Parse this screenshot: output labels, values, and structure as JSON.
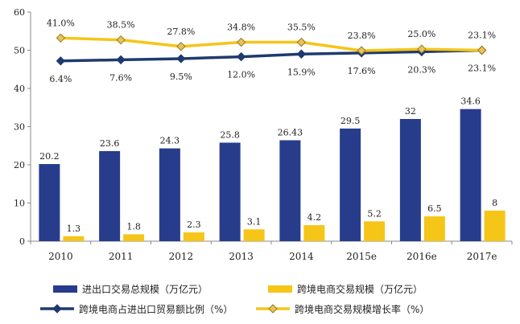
{
  "chart_data": {
    "type": "bar",
    "categories": [
      "2010",
      "2011",
      "2012",
      "2013",
      "2014",
      "2015e",
      "2016e",
      "2017e"
    ],
    "ylim": [
      0,
      60
    ],
    "yticks": [
      0,
      10,
      20,
      30,
      40,
      50,
      60
    ],
    "grid": false,
    "legend_position": "bottom",
    "series": [
      {
        "name": "进出口交易总规模（万亿元）",
        "type": "bar",
        "color": "#283C8C",
        "values": [
          20.2,
          23.6,
          24.3,
          25.8,
          26.43,
          29.5,
          32,
          34.6
        ],
        "labels": [
          "20.2",
          "23.6",
          "24.3",
          "25.8",
          "26.43",
          "29.5",
          "32",
          "34.6"
        ]
      },
      {
        "name": "跨境电商交易规模（万亿元）",
        "type": "bar",
        "color": "#F5C518",
        "values": [
          1.3,
          1.8,
          2.3,
          3.1,
          4.2,
          5.2,
          6.5,
          8
        ],
        "labels": [
          "1.3",
          "1.8",
          "2.3",
          "3.1",
          "4.2",
          "5.2",
          "6.5",
          "8"
        ]
      },
      {
        "name": "跨境电商占进出口贸易额比例（%）",
        "type": "line",
        "color": "#1F3A6E",
        "marker": "diamond",
        "values": [
          47.2,
          47.5,
          47.8,
          48.3,
          49.0,
          49.3,
          49.6,
          50.0
        ],
        "labels": [
          "6.4%",
          "7.6%",
          "9.5%",
          "12.0%",
          "15.9%",
          "17.6%",
          "20.3%",
          "23.1%"
        ]
      },
      {
        "name": "跨境电商交易规模增长率（%）",
        "type": "line",
        "color": "#F5C518",
        "marker": "diamond",
        "values": [
          53.2,
          52.7,
          51.0,
          52.1,
          52.1,
          49.9,
          50.3,
          50.0
        ],
        "labels": [
          "41.0%",
          "38.5%",
          "27.8%",
          "34.8%",
          "35.5%",
          "23.8%",
          "25.0%",
          "23.1%"
        ]
      }
    ]
  }
}
